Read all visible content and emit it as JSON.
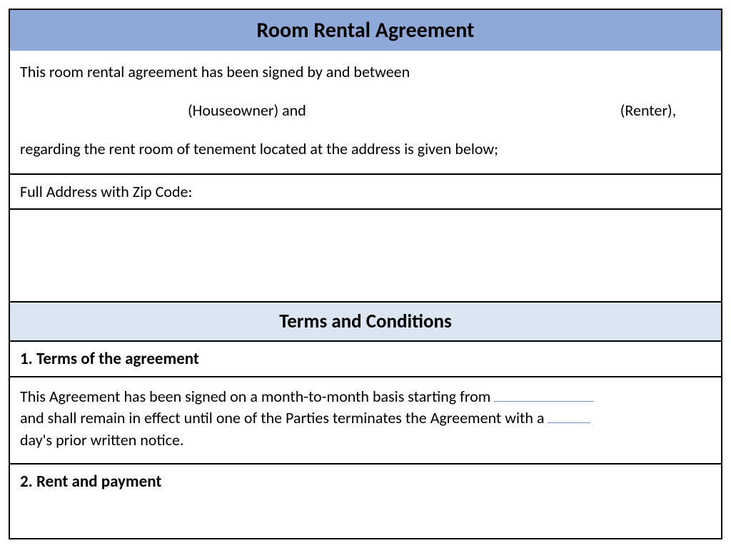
{
  "colors": {
    "header_bg": "#8ea9d8",
    "subheader_bg": "#dce6f2",
    "border": "#000000",
    "text": "#000000",
    "underline": "#7a8fb8",
    "background": "#ffffff"
  },
  "typography": {
    "font_family": "Calibri, 'Segoe UI', Arial, sans-serif",
    "title_fontsize": 30,
    "body_fontsize": 22,
    "heading_fontsize": 23,
    "subheader_fontsize": 27
  },
  "document": {
    "title": "Room Rental Agreement",
    "intro": {
      "line1": "This room rental agreement has been signed by and between",
      "houseowner_label": "(Houseowner) and",
      "renter_label": "(Renter),",
      "line3": "regarding the rent room of tenement located at the address is given below;"
    },
    "address_label": "Full Address with Zip Code:",
    "terms_header": "Terms and Conditions",
    "sections": [
      {
        "heading": "1. Terms of the agreement",
        "body_part1": "This Agreement has been signed on a month-to-month basis starting from",
        "body_part2": "and shall remain in effect until one of the Parties terminates the Agreement with a",
        "body_part3": "day's   prior written notice."
      },
      {
        "heading": "2. Rent and payment"
      }
    ]
  }
}
